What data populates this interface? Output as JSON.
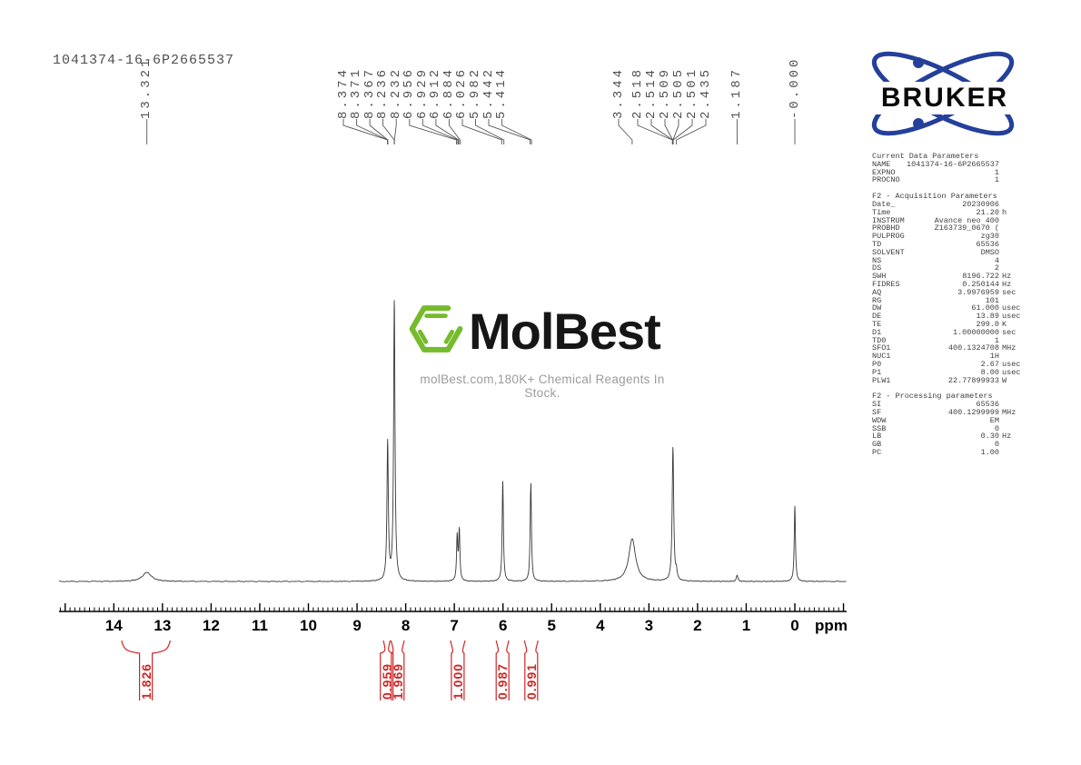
{
  "title": "1041374-16-6P2665537",
  "bruker": {
    "label": "BRUKER"
  },
  "watermark": {
    "brand": "MolBest",
    "tagline": "molBest.com,180K+ Chemical Reagents In Stock."
  },
  "axis": {
    "unit": "ppm",
    "ticks": [
      "14",
      "13",
      "12",
      "11",
      "10",
      "9",
      "8",
      "7",
      "6",
      "5",
      "4",
      "3",
      "2",
      "1",
      "0"
    ]
  },
  "colors": {
    "integral_red": "#cf2626",
    "spectrum_line": "#383838",
    "bruker_blue": "#24409a",
    "molbest_green": "#75bb2c"
  },
  "chart_data": {
    "type": "line",
    "xlabel": "ppm",
    "x_range": [
      15.1,
      -1.1
    ],
    "peak_labels": [
      {
        "text": "13.321",
        "ppm": 13.321,
        "group": "solo"
      },
      {
        "text": "8.374",
        "ppm": 8.374,
        "group": "g1"
      },
      {
        "text": "8.371",
        "ppm": 8.371,
        "group": "g1"
      },
      {
        "text": "8.367",
        "ppm": 8.367,
        "group": "g1"
      },
      {
        "text": "8.236",
        "ppm": 8.236,
        "group": "g1"
      },
      {
        "text": "8.232",
        "ppm": 8.232,
        "group": "g1"
      },
      {
        "text": "6.956",
        "ppm": 6.956,
        "group": "g1"
      },
      {
        "text": "6.929",
        "ppm": 6.929,
        "group": "g1"
      },
      {
        "text": "6.912",
        "ppm": 6.912,
        "group": "g1"
      },
      {
        "text": "6.884",
        "ppm": 6.884,
        "group": "g1"
      },
      {
        "text": "6.026",
        "ppm": 6.026,
        "group": "g1"
      },
      {
        "text": "5.982",
        "ppm": 5.982,
        "group": "g1"
      },
      {
        "text": "5.442",
        "ppm": 5.442,
        "group": "g1"
      },
      {
        "text": "5.414",
        "ppm": 5.414,
        "group": "g1"
      },
      {
        "text": "3.344",
        "ppm": 3.344,
        "group": "g2a"
      },
      {
        "text": "2.518",
        "ppm": 2.518,
        "group": "g2"
      },
      {
        "text": "2.514",
        "ppm": 2.514,
        "group": "g2"
      },
      {
        "text": "2.509",
        "ppm": 2.509,
        "group": "g2"
      },
      {
        "text": "2.505",
        "ppm": 2.505,
        "group": "g2"
      },
      {
        "text": "2.501",
        "ppm": 2.501,
        "group": "g2"
      },
      {
        "text": "2.435",
        "ppm": 2.435,
        "group": "g2"
      },
      {
        "text": "1.187",
        "ppm": 1.187,
        "group": "solo"
      },
      {
        "text": "-0.000",
        "ppm": 0.0,
        "group": "solo"
      }
    ],
    "peaks": [
      {
        "ppm": 13.32,
        "intensity": 10,
        "width": 6
      },
      {
        "ppm": 8.371,
        "intensity": 152,
        "width": 0.9
      },
      {
        "ppm": 8.234,
        "intensity": 309,
        "width": 0.9
      },
      {
        "ppm": 6.942,
        "intensity": 48,
        "width": 0.8
      },
      {
        "ppm": 6.898,
        "intensity": 55,
        "width": 0.8
      },
      {
        "ppm": 6.004,
        "intensity": 110,
        "width": 0.8
      },
      {
        "ppm": 5.428,
        "intensity": 112,
        "width": 0.8
      },
      {
        "ppm": 3.344,
        "intensity": 47,
        "width": 4.5
      },
      {
        "ppm": 2.506,
        "intensity": 147,
        "width": 1.0
      },
      {
        "ppm": 2.435,
        "intensity": 9,
        "width": 0.8
      },
      {
        "ppm": 1.187,
        "intensity": 7,
        "width": 1.0
      },
      {
        "ppm": 0.0,
        "intensity": 83,
        "width": 0.8
      }
    ],
    "integrals": [
      {
        "value": "1.826",
        "from_ppm": 13.84,
        "to_ppm": 12.84
      },
      {
        "value": "0.959",
        "from_ppm": 8.46,
        "to_ppm": 8.32
      },
      {
        "value": "1.969",
        "from_ppm": 8.3,
        "to_ppm": 8.03
      },
      {
        "value": "1.000",
        "from_ppm": 7.08,
        "to_ppm": 6.78
      },
      {
        "value": "0.987",
        "from_ppm": 6.14,
        "to_ppm": 5.88
      },
      {
        "value": "0.991",
        "from_ppm": 5.56,
        "to_ppm": 5.28
      }
    ]
  },
  "parameters": {
    "sections": [
      {
        "header": "Current Data Parameters",
        "rows": [
          [
            "NAME",
            "1041374-16-6P2665537",
            ""
          ],
          [
            "EXPNO",
            "1",
            ""
          ],
          [
            "PROCNO",
            "1",
            ""
          ]
        ]
      },
      {
        "header": "F2 - Acquisition Parameters",
        "rows": [
          [
            "Date_",
            "20230906",
            ""
          ],
          [
            "Time",
            "21.20",
            "h"
          ],
          [
            "INSTRUM",
            "Avance neo 400",
            ""
          ],
          [
            "PROBHD",
            "Z163739_0670 (",
            ""
          ],
          [
            "PULPROG",
            "zg30",
            ""
          ],
          [
            "TD",
            "65536",
            ""
          ],
          [
            "SOLVENT",
            "DMSO",
            ""
          ],
          [
            "NS",
            "4",
            ""
          ],
          [
            "DS",
            "2",
            ""
          ],
          [
            "SWH",
            "8196.722",
            "Hz"
          ],
          [
            "FIDRES",
            "0.250144",
            "Hz"
          ],
          [
            "AQ",
            "3.9976959",
            "sec"
          ],
          [
            "RG",
            "101",
            ""
          ],
          [
            "DW",
            "61.000",
            "usec"
          ],
          [
            "DE",
            "13.89",
            "usec"
          ],
          [
            "TE",
            "299.0",
            "K"
          ],
          [
            "D1",
            "1.00000000",
            "sec"
          ],
          [
            "TD0",
            "1",
            ""
          ],
          [
            "SFO1",
            "400.1324708",
            "MHz"
          ],
          [
            "NUC1",
            "1H",
            ""
          ],
          [
            "P0",
            "2.67",
            "usec"
          ],
          [
            "P1",
            "8.00",
            "usec"
          ],
          [
            "PLW1",
            "22.77899933",
            "W"
          ]
        ]
      },
      {
        "header": "F2 - Processing parameters",
        "rows": [
          [
            "SI",
            "65536",
            ""
          ],
          [
            "SF",
            "400.1299999",
            "MHz"
          ],
          [
            "WDW",
            "EM",
            ""
          ],
          [
            "SSB",
            "0",
            ""
          ],
          [
            "LB",
            "0.30",
            "Hz"
          ],
          [
            "GB",
            "0",
            ""
          ],
          [
            "PC",
            "1.00",
            ""
          ]
        ]
      }
    ]
  }
}
